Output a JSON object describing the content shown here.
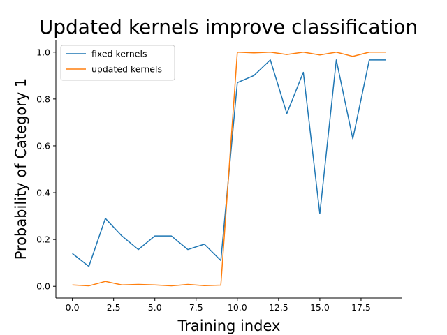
{
  "chart_data": {
    "type": "line",
    "title": "Updated kernels improve classification",
    "xlabel": "Training index",
    "ylabel": "Probability of Category 1",
    "xlim": [
      -1,
      20
    ],
    "ylim": [
      -0.05,
      1.05
    ],
    "xticks": [
      0.0,
      2.5,
      5.0,
      7.5,
      10.0,
      12.5,
      15.0,
      17.5
    ],
    "xtick_labels": [
      "0.0",
      "2.5",
      "5.0",
      "7.5",
      "10.0",
      "12.5",
      "15.0",
      "17.5"
    ],
    "yticks": [
      0.0,
      0.2,
      0.4,
      0.6,
      0.8,
      1.0
    ],
    "ytick_labels": [
      "0.0",
      "0.2",
      "0.4",
      "0.6",
      "0.8",
      "1.0"
    ],
    "grid": false,
    "legend_position": "top-left",
    "x": [
      0,
      1,
      2,
      3,
      4,
      5,
      6,
      7,
      8,
      9,
      10,
      11,
      12,
      13,
      14,
      15,
      16,
      17,
      18,
      19
    ],
    "series": [
      {
        "name": "fixed kernels",
        "color": "#1f77b4",
        "values": [
          0.14,
          0.085,
          0.29,
          0.215,
          0.157,
          0.215,
          0.215,
          0.157,
          0.18,
          0.11,
          0.87,
          0.9,
          0.967,
          0.738,
          0.914,
          0.31,
          0.967,
          0.63,
          0.967,
          0.967
        ]
      },
      {
        "name": "updated kernels",
        "color": "#ff7f0e",
        "values": [
          0.006,
          0.002,
          0.021,
          0.006,
          0.008,
          0.006,
          0.002,
          0.008,
          0.003,
          0.005,
          1.0,
          0.997,
          1.0,
          0.99,
          1.0,
          0.988,
          1.0,
          0.982,
          1.0,
          1.0
        ]
      }
    ]
  }
}
